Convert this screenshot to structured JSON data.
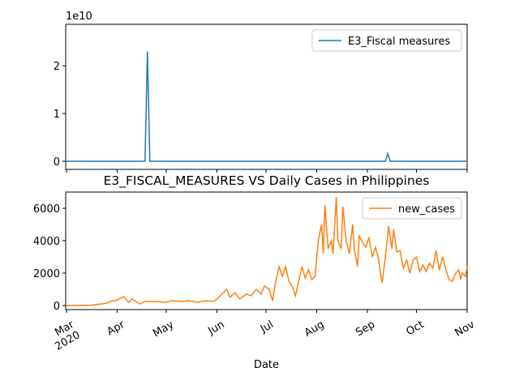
{
  "chart_data": [
    {
      "type": "line",
      "offset_label": "1e10",
      "legend": "upper right",
      "xlim": [
        -0.5,
        245
      ],
      "ylim": [
        -0.17,
        2.87
      ],
      "yticks": [
        0,
        1,
        2
      ],
      "series": [
        {
          "name": "E3_Fiscal measures",
          "color": "#1f77b4",
          "x": [
            0,
            48,
            49.5,
            51,
            195,
            196.5,
            198,
            245
          ],
          "values": [
            0,
            0,
            2.3,
            0,
            0,
            0.16,
            0,
            0
          ]
        }
      ]
    },
    {
      "type": "line",
      "title": "E3_FISCAL_MEASURES VS Daily Cases in Philippines",
      "xlabel": "Date",
      "legend": "upper right",
      "xlim": [
        -0.5,
        245
      ],
      "ylim": [
        -250,
        7000
      ],
      "yticks": [
        0,
        2000,
        4000,
        6000
      ],
      "xticks": [
        {
          "value": 0,
          "label": "Mar\n2020"
        },
        {
          "value": 31,
          "label": "Apr"
        },
        {
          "value": 61,
          "label": "May"
        },
        {
          "value": 92,
          "label": "Jun"
        },
        {
          "value": 122,
          "label": "Jul"
        },
        {
          "value": 153,
          "label": "Aug"
        },
        {
          "value": 184,
          "label": "Sep"
        },
        {
          "value": 214,
          "label": "Oct"
        },
        {
          "value": 245,
          "label": "Nov"
        }
      ],
      "series": [
        {
          "name": "new_cases",
          "color": "#ff7f0e",
          "x": [
            0,
            5,
            10,
            15,
            20,
            25,
            28,
            30,
            35,
            38,
            40,
            45,
            48,
            55,
            60,
            65,
            70,
            75,
            80,
            85,
            90,
            92,
            95,
            98,
            100,
            103,
            106,
            110,
            113,
            116,
            119,
            121,
            124,
            126,
            128,
            130,
            132,
            134,
            136,
            138,
            140,
            142,
            144,
            146,
            148,
            150,
            152,
            154,
            156,
            157,
            158,
            160,
            162,
            163,
            165,
            166,
            168,
            169,
            171,
            173,
            175,
            176,
            178,
            179,
            181,
            183,
            185,
            187,
            189,
            191,
            192,
            193,
            195,
            197,
            199,
            200,
            202,
            204,
            206,
            208,
            210,
            212,
            214,
            216,
            218,
            220,
            222,
            224,
            226,
            228,
            230,
            232,
            234,
            236,
            238,
            240,
            241,
            242,
            244,
            245
          ],
          "values": [
            0,
            0,
            10,
            20,
            80,
            150,
            300,
            300,
            550,
            200,
            400,
            100,
            250,
            250,
            200,
            300,
            250,
            300,
            200,
            300,
            250,
            400,
            700,
            1000,
            500,
            800,
            400,
            700,
            600,
            1000,
            700,
            1200,
            1000,
            300,
            1500,
            2400,
            1800,
            2400,
            1500,
            1200,
            600,
            1500,
            2400,
            1700,
            2200,
            1600,
            1800,
            4000,
            5000,
            3200,
            6200,
            3500,
            4000,
            3200,
            6700,
            4000,
            3500,
            6100,
            4000,
            3200,
            5000,
            3500,
            2400,
            4300,
            3900,
            3600,
            4200,
            3000,
            3600,
            2800,
            2000,
            1400,
            3000,
            4900,
            3500,
            4700,
            3300,
            3400,
            2300,
            2800,
            2000,
            2800,
            3000,
            2100,
            2500,
            2100,
            2600,
            2300,
            3400,
            2200,
            3000,
            2200,
            1600,
            1500,
            2000,
            2200,
            1600,
            2000,
            1800,
            2400
          ]
        }
      ]
    }
  ]
}
